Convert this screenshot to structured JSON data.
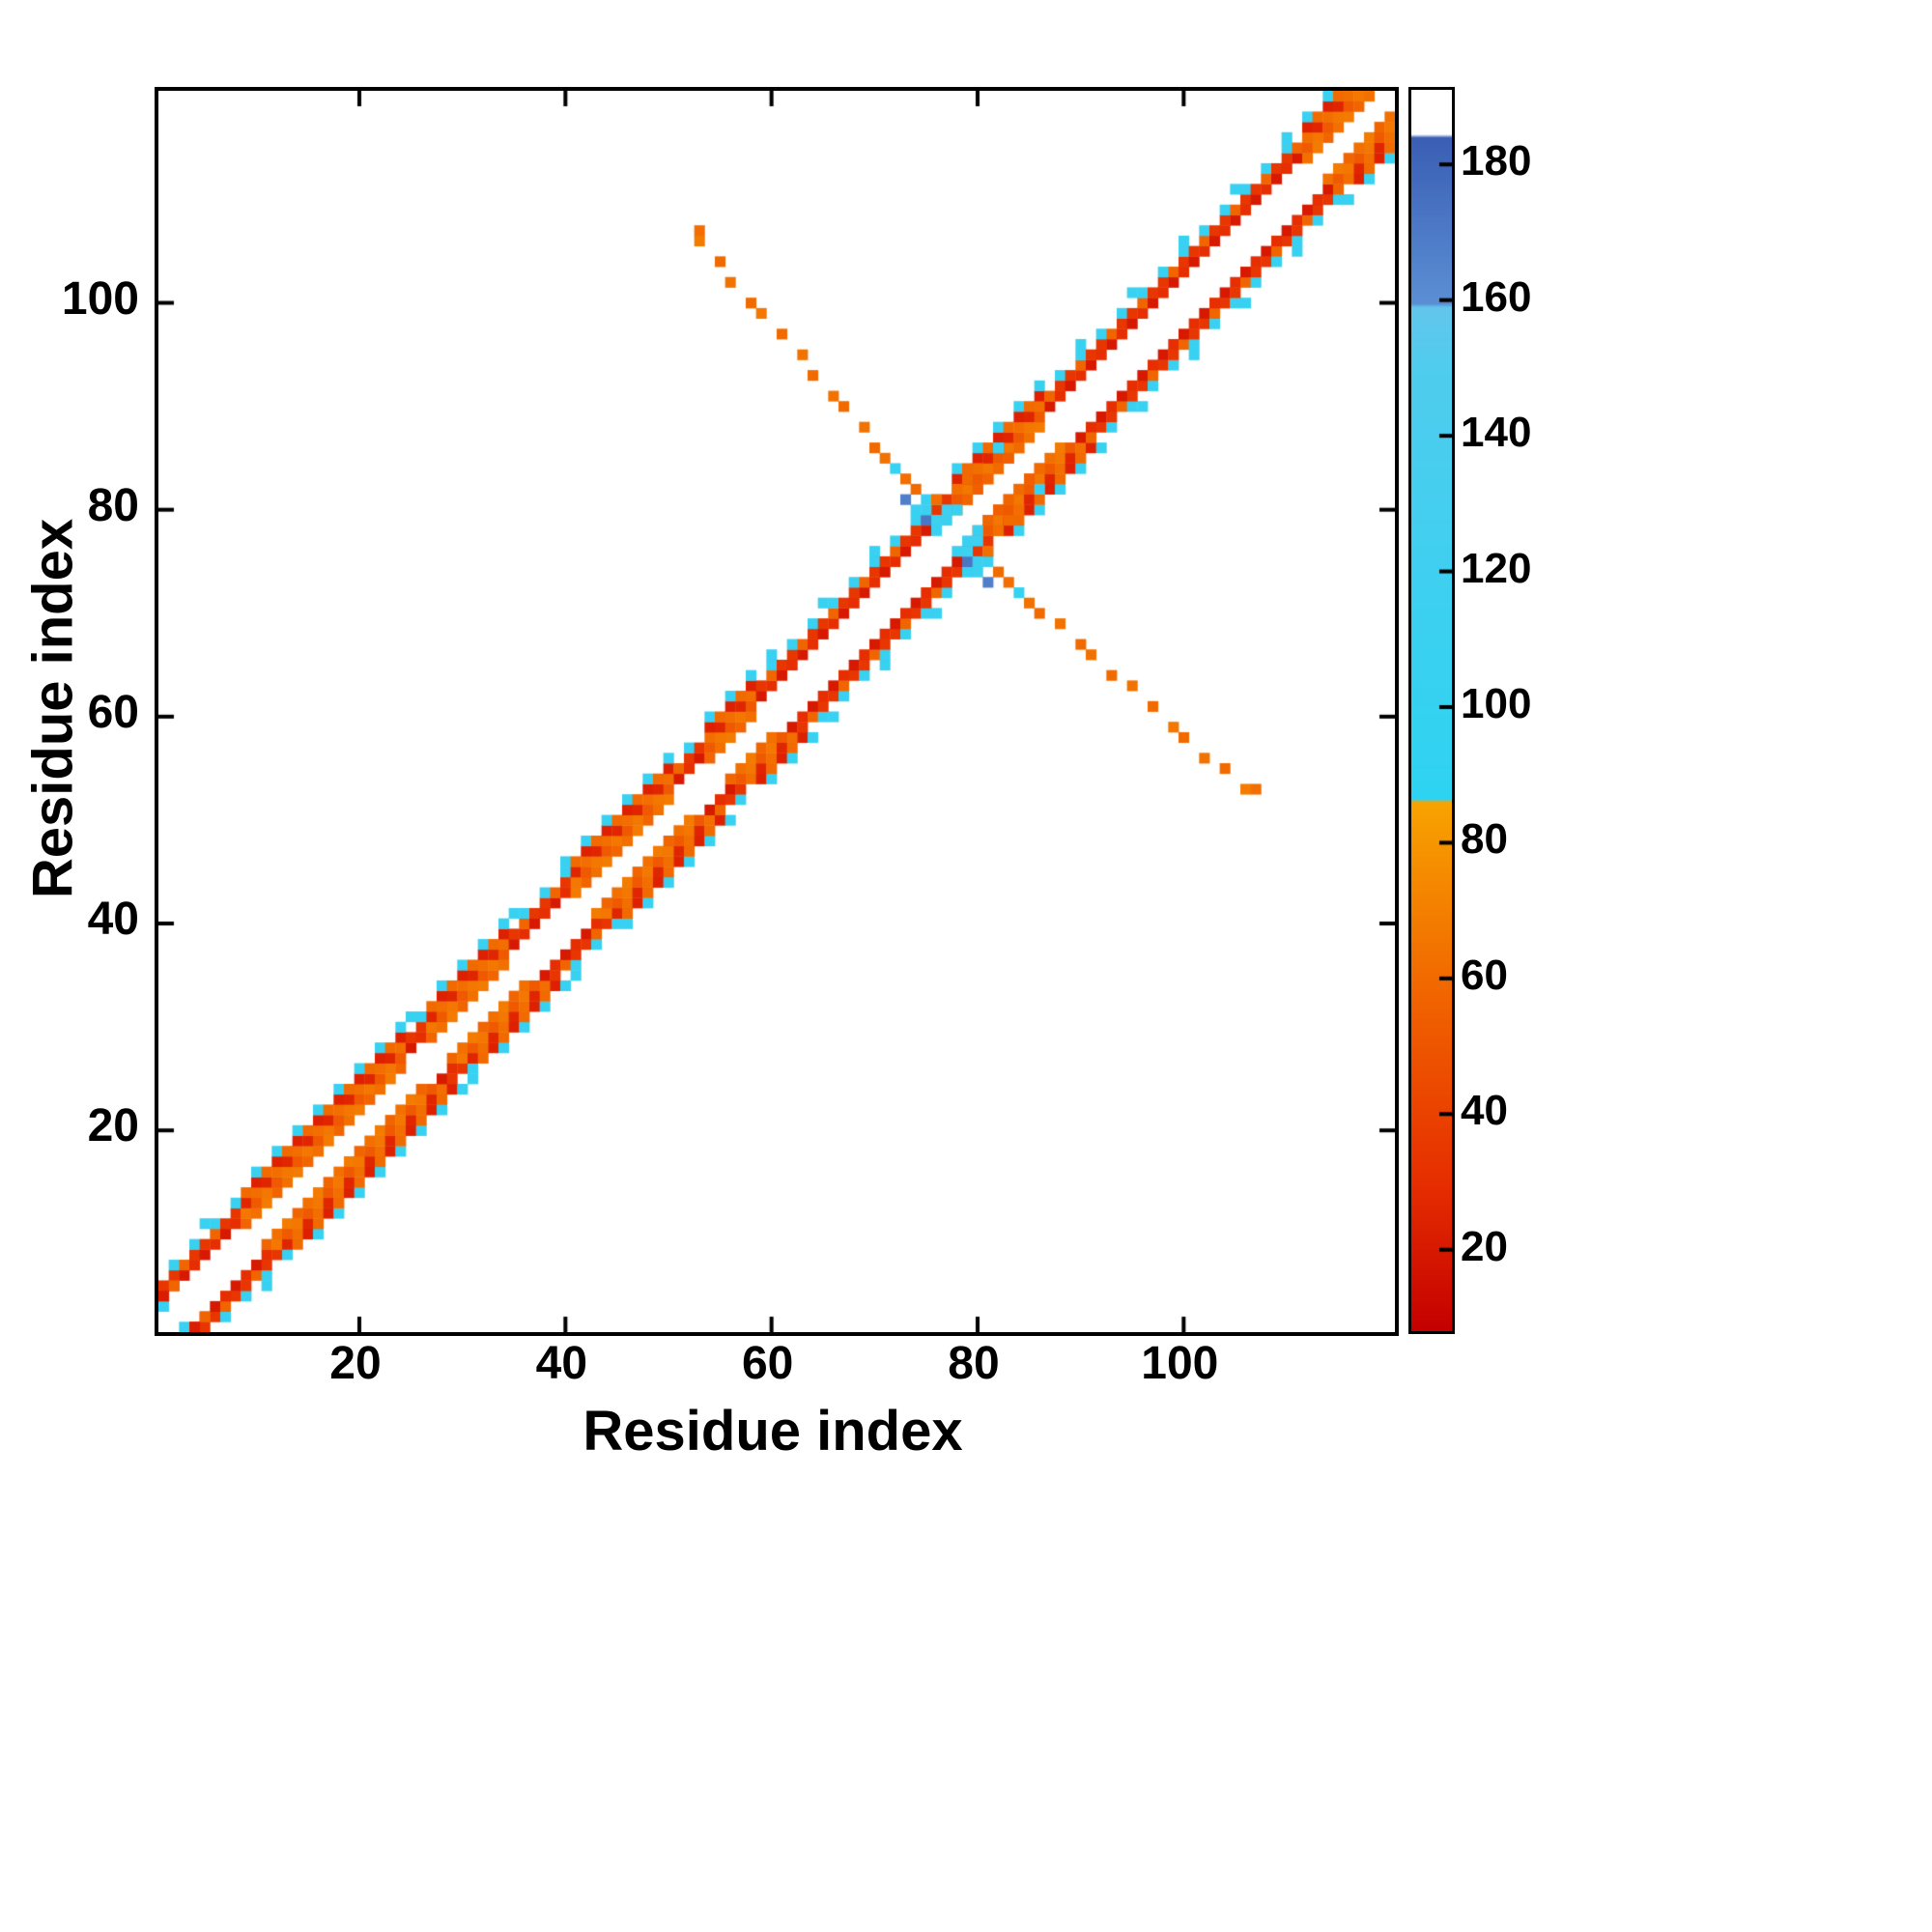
{
  "chart_data": {
    "type": "heatmap",
    "title": "",
    "xlabel": "Residue index",
    "ylabel": "Residue index",
    "x_range": [
      0.5,
      120.5
    ],
    "y_range": [
      0.5,
      120.5
    ],
    "n_residues": 120,
    "x_ticks": [
      20,
      40,
      60,
      80,
      100
    ],
    "y_ticks": [
      20,
      40,
      60,
      80,
      100
    ],
    "grid": false,
    "background_color": "#ffffff",
    "frame_color": "#000000",
    "colorbar": {
      "position": "right",
      "value_min": 8,
      "value_max": 191,
      "ticks": [
        20,
        40,
        60,
        80,
        100,
        120,
        140,
        160,
        180
      ],
      "color_stops": [
        [
          8,
          "#c40000"
        ],
        [
          30,
          "#e62e00"
        ],
        [
          55,
          "#f05f00"
        ],
        [
          75,
          "#f58a00"
        ],
        [
          86,
          "#f7a300"
        ],
        [
          86.5,
          "#2ed3f2"
        ],
        [
          150,
          "#4fccee"
        ],
        [
          159,
          "#63c6ec"
        ],
        [
          159.5,
          "#5b8fd4"
        ],
        [
          184,
          "#3a5eb4"
        ],
        [
          184.5,
          "#ffffff"
        ],
        [
          191,
          "#ffffff"
        ]
      ]
    },
    "diagonal_band": {
      "description_values": {
        "red_near_diagonal": 22,
        "red_alt": 32,
        "orange_bulge": 60,
        "cyan_speckle": 105
      },
      "orange_segments": [
        [
          9,
          24
        ],
        [
          27,
          34
        ],
        [
          41,
          50
        ],
        [
          54,
          58
        ],
        [
          78,
          86
        ],
        [
          112,
          119
        ]
      ]
    },
    "antidiagonal_contacts": [
      [
        53,
        107,
        62
      ],
      [
        53,
        106,
        68
      ],
      [
        55,
        104,
        60
      ],
      [
        56,
        102,
        64
      ],
      [
        58,
        100,
        60
      ],
      [
        59,
        99,
        66
      ],
      [
        61,
        97,
        60
      ],
      [
        63,
        95,
        64
      ],
      [
        64,
        93,
        60
      ],
      [
        66,
        91,
        64
      ],
      [
        67,
        90,
        60
      ],
      [
        69,
        88,
        64
      ],
      [
        70,
        86,
        60
      ],
      [
        71,
        85,
        64
      ],
      [
        72,
        84,
        100
      ],
      [
        73,
        83,
        62
      ],
      [
        74,
        82,
        60
      ]
    ],
    "cross_cells": [
      [
        74,
        80,
        110
      ],
      [
        75,
        79,
        172
      ],
      [
        75,
        80,
        112
      ],
      [
        76,
        78,
        108
      ],
      [
        76,
        79,
        115
      ],
      [
        77,
        79,
        112
      ],
      [
        77,
        80,
        118
      ],
      [
        78,
        80,
        110
      ],
      [
        73,
        81,
        168
      ],
      [
        76,
        81,
        62
      ],
      [
        78,
        82,
        62
      ],
      [
        79,
        81,
        58
      ],
      [
        79,
        83,
        60
      ],
      [
        80,
        82,
        55
      ],
      [
        80,
        84,
        62
      ],
      [
        81,
        83,
        58
      ],
      [
        82,
        84,
        60
      ],
      [
        82,
        86,
        105
      ],
      [
        83,
        85,
        55
      ],
      [
        84,
        86,
        60
      ]
    ],
    "extra_cells": [
      [
        1,
        3,
        105
      ],
      [
        2,
        5,
        58
      ],
      [
        1,
        4,
        22
      ]
    ]
  }
}
